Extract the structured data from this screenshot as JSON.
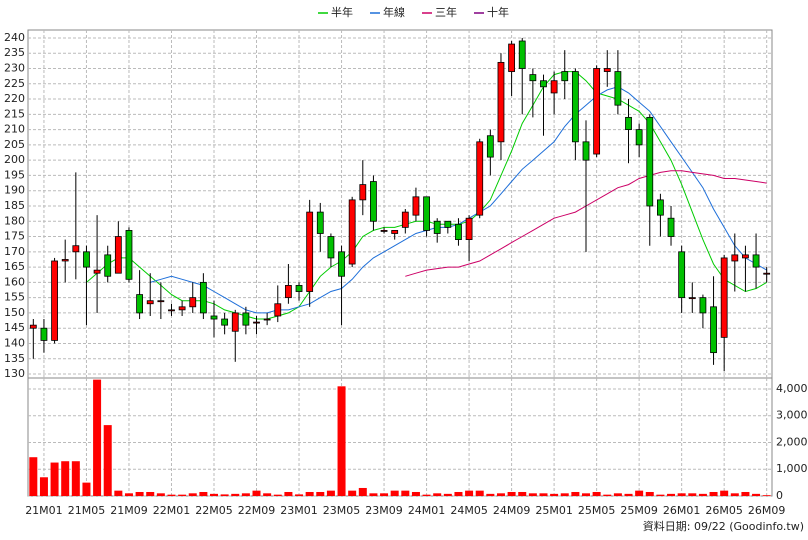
{
  "chart_data": {
    "type": "candlestick",
    "categories": [
      null,
      "21M01",
      null,
      null,
      null,
      "21M05",
      null,
      null,
      null,
      "21M09",
      null,
      null,
      null,
      "22M01",
      null,
      null,
      null,
      "22M05",
      null,
      null,
      null,
      "22M09",
      null,
      null,
      null,
      "23M01",
      null,
      null,
      null,
      "23M05",
      null,
      null,
      null,
      "23M09",
      null,
      null,
      null,
      "24M01",
      null,
      null,
      null,
      "24M05",
      null,
      null,
      null,
      "24M09",
      null,
      null,
      null,
      "25M01",
      null,
      null,
      null,
      "25M05",
      null,
      null,
      null,
      "25M09",
      null,
      null,
      null,
      "26M01",
      null,
      null,
      null,
      "26M05",
      null,
      null,
      null,
      "26M09"
    ],
    "open": [
      145,
      145,
      141,
      167,
      170,
      170,
      163,
      169,
      163,
      177,
      156,
      153,
      154,
      151,
      151,
      152,
      160,
      149,
      148,
      144,
      150,
      147,
      148,
      149,
      155,
      159,
      157,
      183,
      175,
      170,
      166,
      187,
      193,
      177,
      176,
      178,
      182,
      188,
      180,
      180,
      179,
      174,
      182,
      208,
      206,
      229,
      239,
      228,
      226,
      222,
      229,
      229,
      206,
      202,
      229,
      229,
      214,
      210,
      214,
      187,
      181,
      170,
      155,
      155,
      152,
      142,
      167,
      168,
      169,
      163
    ],
    "high": [
      148,
      148,
      168,
      174,
      196,
      172,
      182,
      172,
      180,
      178,
      164,
      163,
      160,
      153,
      154,
      160,
      163,
      154,
      150,
      151,
      152,
      149,
      150,
      159,
      166,
      160,
      187,
      186,
      176,
      172,
      188,
      200,
      195,
      178,
      177,
      184,
      191,
      188,
      181,
      180,
      181,
      182,
      207,
      210,
      235,
      239,
      240,
      230,
      228,
      229,
      236,
      230,
      213,
      231,
      236,
      236,
      220,
      212,
      215,
      189,
      185,
      172,
      160,
      156,
      162,
      169,
      176,
      172,
      176,
      165
    ],
    "low": [
      135,
      137,
      140,
      160,
      161,
      146,
      150,
      160,
      163,
      160,
      148,
      149,
      148,
      149,
      149,
      150,
      148,
      142,
      143,
      134,
      143,
      143,
      146,
      147,
      153,
      154,
      152,
      170,
      165,
      146,
      165,
      182,
      177,
      176,
      174,
      176,
      180,
      175,
      173,
      176,
      172,
      167,
      181,
      195,
      200,
      221,
      215,
      214,
      208,
      215,
      220,
      200,
      170,
      201,
      224,
      215,
      199,
      201,
      172,
      175,
      172,
      150,
      150,
      145,
      133,
      131,
      157,
      157,
      158,
      160
    ],
    "close": [
      146,
      141,
      167,
      167.5,
      172,
      165,
      164,
      162,
      175,
      161,
      150,
      154,
      154,
      151,
      152,
      155,
      150,
      148,
      146,
      150,
      146,
      147,
      148,
      153,
      159,
      157,
      183,
      176,
      168,
      162,
      187,
      192,
      180,
      177,
      177,
      183,
      188,
      177,
      176,
      178,
      174,
      181,
      206,
      201,
      232,
      238,
      230,
      226,
      224,
      226,
      226,
      206,
      200,
      230,
      230,
      218,
      210,
      205,
      185,
      182,
      175,
      155,
      155,
      150,
      137,
      168,
      169,
      169,
      165,
      163
    ],
    "up_color": "#ff0000",
    "down_color": "#00c000",
    "series": [
      {
        "name": "半年",
        "color": "#00cc00",
        "values": [
          null,
          null,
          null,
          null,
          null,
          160,
          163,
          166,
          168,
          168,
          165,
          162,
          159,
          156,
          154,
          154,
          154,
          153,
          151,
          150,
          149,
          148,
          148,
          149,
          150,
          152,
          157,
          162,
          165,
          167,
          170,
          175,
          177,
          178,
          178,
          179,
          180,
          180,
          179,
          179,
          179,
          180,
          183,
          187,
          195,
          203,
          212,
          218,
          224,
          228,
          229,
          229,
          226,
          222,
          221,
          220,
          218,
          216,
          212,
          206,
          200,
          192,
          183,
          174,
          166,
          161,
          159,
          157,
          158,
          160
        ]
      },
      {
        "name": "年線",
        "color": "#1e6fd9",
        "values": [
          null,
          null,
          null,
          null,
          null,
          null,
          null,
          null,
          null,
          null,
          null,
          160,
          161,
          162,
          161,
          160,
          159,
          157,
          155,
          153,
          151,
          150,
          150,
          151,
          151,
          152,
          153,
          155,
          157,
          158,
          161,
          165,
          168,
          170,
          172,
          174,
          176,
          177,
          178,
          178,
          179,
          181,
          183,
          185,
          189,
          193,
          197,
          200,
          203,
          206,
          211,
          215,
          218,
          221,
          223,
          224,
          222,
          219,
          216,
          211,
          206,
          201,
          196,
          191,
          184,
          178,
          172,
          168,
          166,
          164
        ]
      },
      {
        "name": "三年",
        "color": "#cc0066",
        "values": [
          null,
          null,
          null,
          null,
          null,
          null,
          null,
          null,
          null,
          null,
          null,
          null,
          null,
          null,
          null,
          null,
          null,
          null,
          null,
          null,
          null,
          null,
          null,
          null,
          null,
          null,
          null,
          null,
          null,
          null,
          null,
          null,
          null,
          null,
          null,
          162,
          163,
          164,
          164.5,
          165,
          165,
          166,
          167,
          169,
          171,
          173,
          175,
          177,
          179,
          181,
          182,
          183,
          185,
          187,
          189,
          191,
          192,
          194,
          195,
          196,
          196.5,
          196.5,
          196,
          195.5,
          195,
          194,
          194,
          193.5,
          193,
          192.5
        ]
      },
      {
        "name": "十年",
        "color": "#800080",
        "values": [
          null,
          null,
          null,
          null,
          null,
          null,
          null,
          null,
          null,
          null,
          null,
          null,
          null,
          null,
          null,
          null,
          null,
          null,
          null,
          null,
          null,
          null,
          null,
          null,
          null,
          null,
          null,
          null,
          null,
          null,
          null,
          null,
          null,
          null,
          null,
          null,
          null,
          null,
          null,
          null,
          null,
          null,
          null,
          null,
          null,
          null,
          null,
          null,
          null,
          null,
          null,
          null,
          null,
          null,
          null,
          null,
          null,
          null,
          null,
          null,
          null,
          null,
          null,
          null,
          null,
          null,
          null,
          null,
          null,
          null
        ]
      }
    ],
    "ylim": [
      128.7,
      242.6
    ],
    "yticks": [
      130,
      135,
      140,
      145,
      150,
      155,
      160,
      165,
      170,
      175,
      180,
      185,
      190,
      195,
      200,
      205,
      210,
      215,
      220,
      225,
      230,
      235,
      240
    ],
    "grid": true,
    "volume": {
      "color": "#ff0000",
      "values": [
        1450,
        700,
        1250,
        1300,
        1300,
        500,
        4350,
        2650,
        200,
        100,
        150,
        150,
        100,
        50,
        50,
        100,
        150,
        80,
        60,
        80,
        100,
        200,
        100,
        50,
        150,
        60,
        150,
        150,
        200,
        4100,
        200,
        300,
        100,
        100,
        200,
        200,
        150,
        50,
        100,
        80,
        150,
        200,
        200,
        80,
        100,
        150,
        150,
        100,
        100,
        80,
        100,
        150,
        100,
        150,
        50,
        100,
        80,
        200,
        150,
        50,
        80,
        100,
        100,
        80,
        150,
        200,
        100,
        150,
        80,
        30
      ],
      "ylim": [
        0,
        4411
      ],
      "yticks": [
        0,
        {
          "value": 1000,
          "label": "1,000"
        },
        {
          "value": 2000,
          "label": "2,000"
        },
        {
          "value": 3000,
          "label": "3,000"
        },
        {
          "value": 4000,
          "label": "4,000"
        }
      ]
    },
    "source_note": "資料日期: 09/22 (Goodinfo.tw)"
  }
}
